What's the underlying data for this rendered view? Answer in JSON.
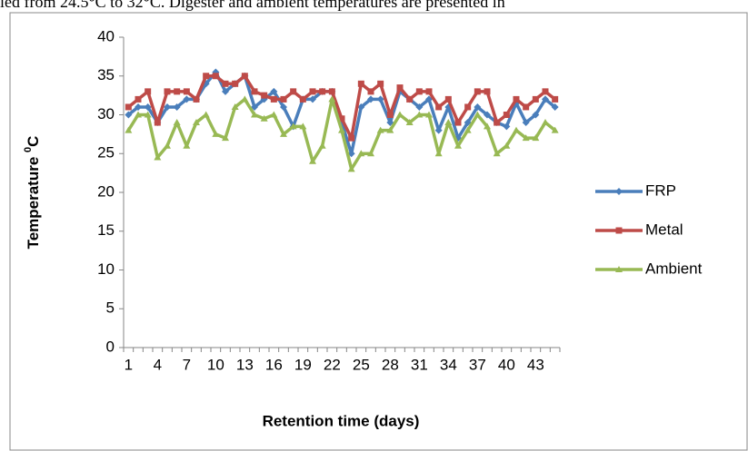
{
  "page_text": "ied from 24.5°C to 32°C. Digester and ambient temperatures are presented in",
  "chart_data": {
    "type": "line",
    "xlabel": "Retention time (days)",
    "ylabel": [
      "Temperature ",
      "0",
      "C"
    ],
    "categories": [
      1,
      null,
      null,
      4,
      null,
      null,
      7,
      null,
      null,
      10,
      null,
      null,
      13,
      null,
      null,
      16,
      null,
      null,
      19,
      null,
      null,
      22,
      null,
      null,
      25,
      null,
      null,
      28,
      null,
      null,
      31,
      null,
      null,
      34,
      null,
      null,
      37,
      null,
      null,
      40,
      null,
      null,
      43,
      null,
      null
    ],
    "series": [
      {
        "name": "FRP",
        "color": "#4a7ebb",
        "marker": "diamond",
        "values": [
          30,
          31,
          31,
          29,
          31,
          31,
          32,
          32,
          34,
          35.5,
          33,
          34,
          35,
          31,
          32,
          33,
          31,
          28.5,
          32,
          32,
          33,
          33,
          29,
          25,
          31,
          32,
          32,
          29,
          33,
          32,
          31,
          32,
          28,
          31,
          27,
          29,
          31,
          30,
          29,
          28.5,
          31.5,
          29,
          30,
          32,
          31
        ]
      },
      {
        "name": "Metal",
        "color": "#be4b48",
        "marker": "square",
        "values": [
          31,
          32,
          33,
          29,
          33,
          33,
          33,
          32,
          35,
          35,
          34,
          34,
          35,
          33,
          32.5,
          32,
          32,
          33,
          32,
          33,
          33,
          33,
          29.5,
          27,
          34,
          33,
          34,
          30,
          33.5,
          32,
          33,
          33,
          31,
          32,
          29,
          31,
          33,
          33,
          29,
          30,
          32,
          31,
          32,
          33,
          32
        ]
      },
      {
        "name": "Ambient",
        "color": "#98b954",
        "marker": "triangle",
        "values": [
          28,
          30,
          30,
          24.5,
          26,
          29,
          26,
          29,
          30,
          27.5,
          27,
          31,
          32,
          30,
          29.5,
          30,
          27.5,
          28.5,
          28.5,
          24,
          26,
          32,
          28,
          23,
          25,
          25,
          28,
          28,
          30,
          29,
          30,
          30,
          25,
          29,
          26,
          28,
          30,
          28.5,
          25,
          26,
          28,
          27,
          27,
          29,
          28
        ]
      }
    ],
    "ylim": [
      0,
      40
    ],
    "yticks": [
      0,
      5,
      10,
      15,
      20,
      25,
      30,
      35,
      40
    ],
    "grid": false,
    "legend": "right"
  }
}
